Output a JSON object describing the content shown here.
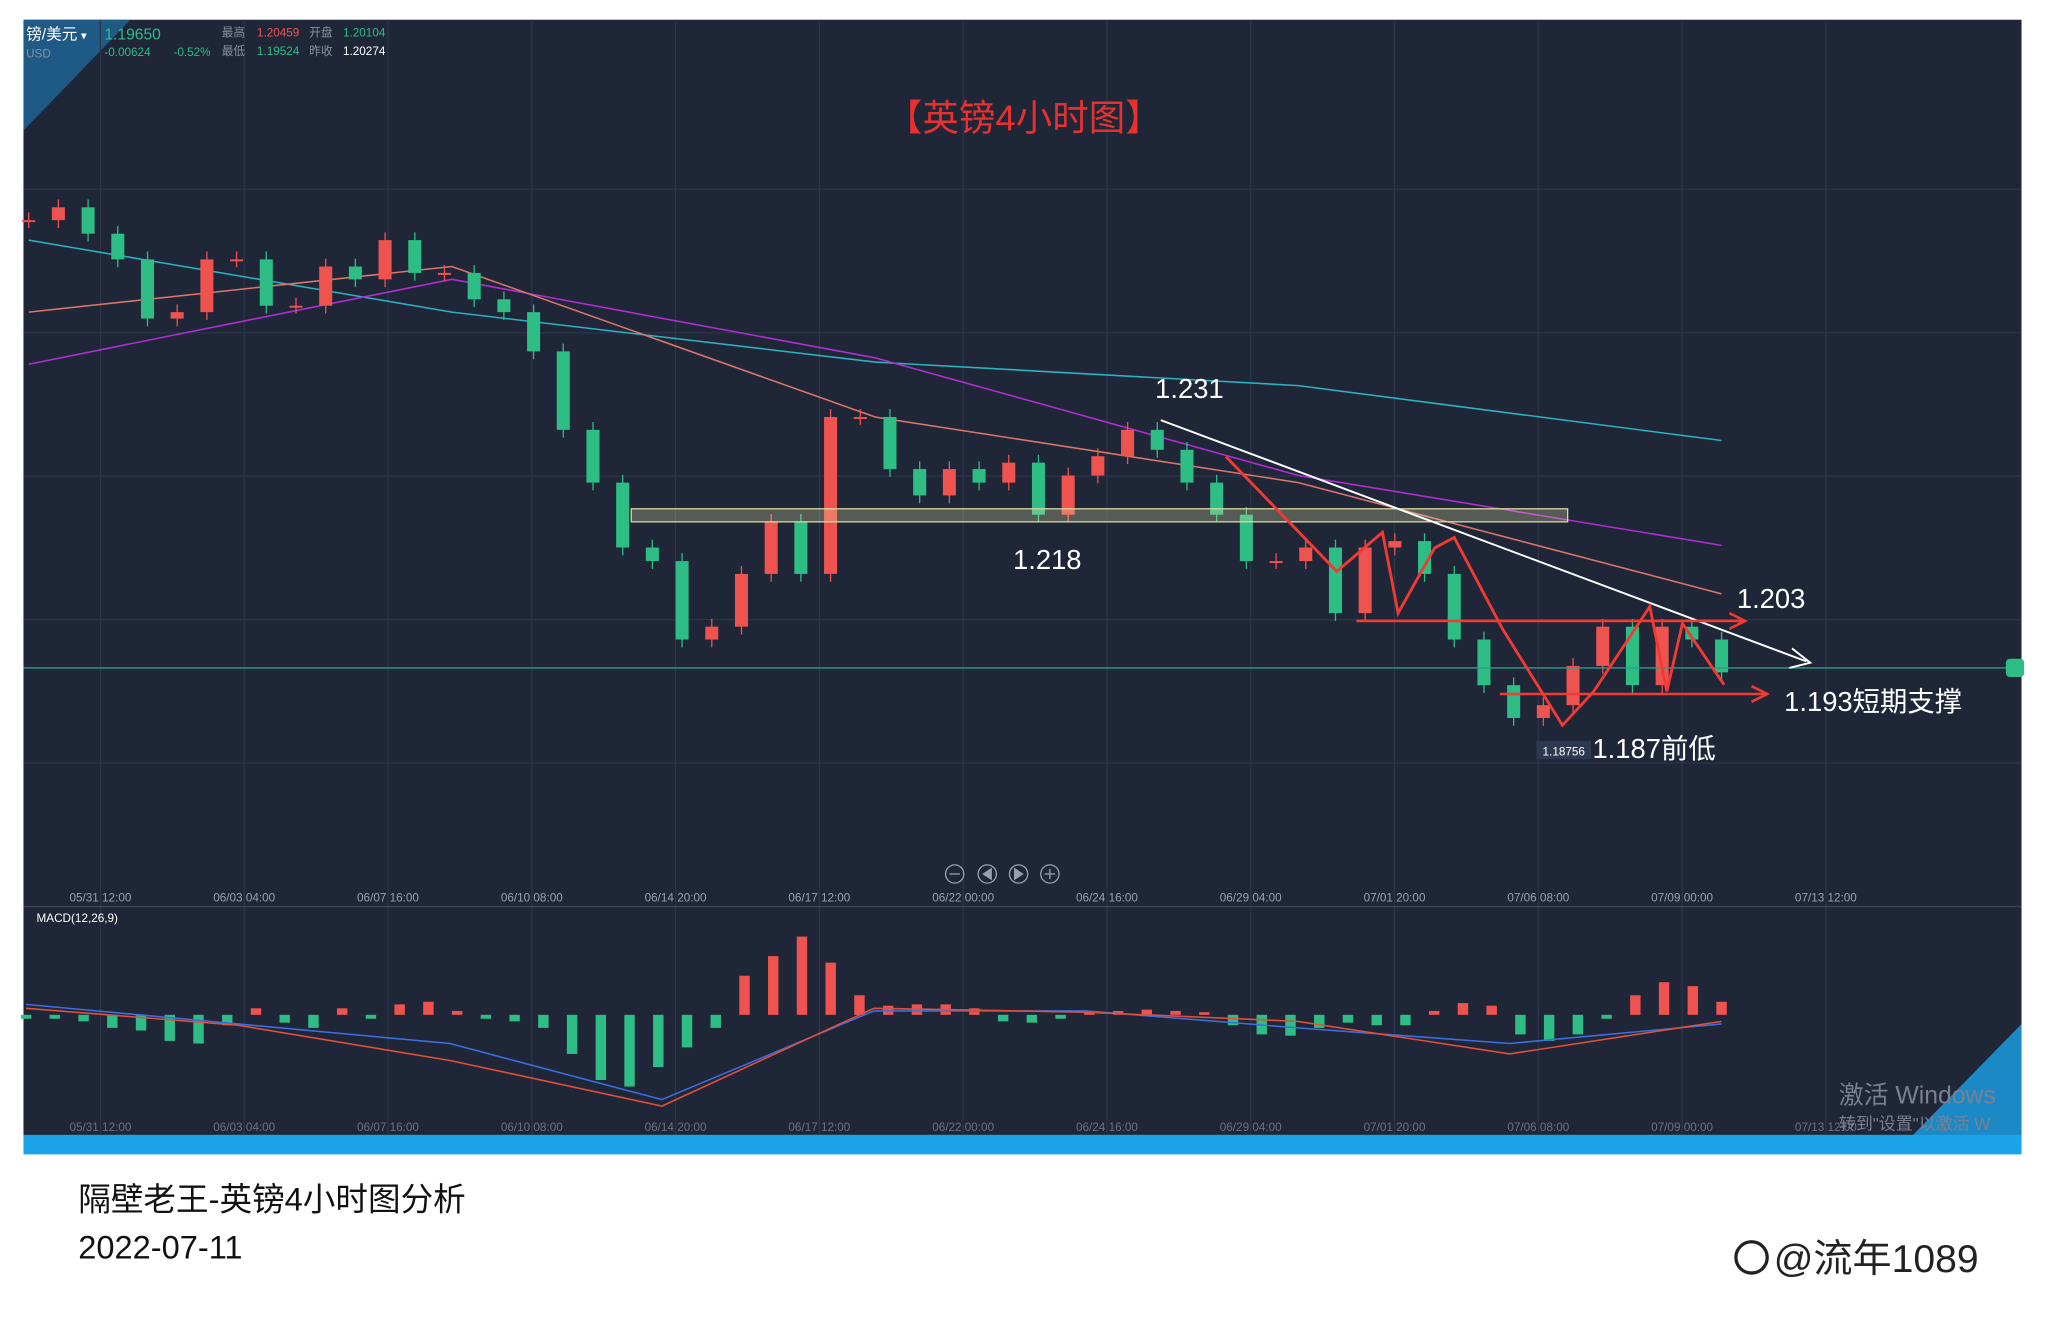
{
  "header": {
    "symbol": "镑/美元",
    "currency": "USD",
    "price": "1.19650",
    "change": "-0.00624",
    "change_pct": "-0.52%",
    "stats": [
      {
        "label": "最高",
        "value": "1.20459"
      },
      {
        "label": "开盘",
        "value": "1.20104"
      },
      {
        "label": "最低",
        "value": "1.19524"
      },
      {
        "label": "昨收",
        "value": "1.20274"
      }
    ]
  },
  "chart_title": "【英镑4小时图】",
  "time_labels": [
    "05/31 12:00",
    "06/03 04:00",
    "06/07 16:00",
    "06/10 08:00",
    "06/14 20:00",
    "06/17 12:00",
    "06/22 00:00",
    "06/24 16:00",
    "06/29 04:00",
    "07/01 20:00",
    "07/06 08:00",
    "07/09 00:00",
    "07/13 12:00"
  ],
  "price_chart": {
    "type": "candlestick",
    "ylim": [
      1.166,
      1.262
    ],
    "closes": [
      1.2595,
      1.2613,
      1.2576,
      1.254,
      1.2457,
      1.2466,
      1.254,
      1.254,
      1.2475,
      1.2475,
      1.253,
      1.2512,
      1.2567,
      1.2521,
      1.2521,
      1.2484,
      1.2466,
      1.2411,
      1.2301,
      1.2227,
      1.2136,
      1.2117,
      1.2007,
      1.2025,
      1.2099,
      1.2172,
      1.2099,
      1.2319,
      1.2319,
      1.2246,
      1.2209,
      1.2246,
      1.2227,
      1.2255,
      1.2182,
      1.2237,
      1.2264,
      1.2301,
      1.2273,
      1.2227,
      1.2182,
      1.2117,
      1.2117,
      1.2136,
      1.2044,
      1.2136,
      1.2145,
      1.2099,
      1.2007,
      1.1943,
      1.1897,
      1.1915,
      1.197,
      1.2025,
      1.1943,
      1.2025,
      1.2007,
      1.1961
    ],
    "ma": [
      {
        "color": "#2bb3c0",
        "values": [
          1.2567,
          1.2466,
          1.2396,
          1.2363,
          1.2286
        ]
      },
      {
        "color": "#b02fd0",
        "values": [
          1.2393,
          1.2512,
          1.2402,
          1.2237,
          1.2139
        ]
      },
      {
        "color": "#d9766b",
        "values": [
          1.2466,
          1.253,
          1.2319,
          1.2227,
          1.2071
        ]
      }
    ]
  },
  "annotations": {
    "high": "1.231",
    "zone": "1.218",
    "resistance": "1.203",
    "support": "1.193短期支撑",
    "prev_low": "1.187前低",
    "low_tag": "1.18756"
  },
  "macd": {
    "type": "bar",
    "label": "MACD(12,26,9)",
    "ylim": [
      -7.7,
      7.3
    ],
    "histogram": [
      -0.3,
      -0.3,
      -0.5,
      -1.0,
      -1.2,
      -2.0,
      -2.2,
      -0.8,
      0.5,
      -0.6,
      -1.0,
      0.5,
      -0.3,
      0.8,
      1.0,
      0.3,
      -0.3,
      -0.5,
      -1.0,
      -3.0,
      -5.0,
      -5.5,
      -4.0,
      -2.5,
      -1.0,
      3.0,
      4.5,
      6.0,
      4.0,
      1.5,
      0.7,
      0.8,
      0.8,
      0.5,
      -0.5,
      -0.6,
      -0.3,
      0.2,
      0.3,
      0.4,
      0.3,
      0.2,
      -0.8,
      -1.5,
      -1.6,
      -1.0,
      -0.6,
      -0.8,
      -0.8,
      0.3,
      0.9,
      0.7,
      -1.5,
      -2.0,
      -1.5,
      -0.3,
      1.5,
      2.5,
      2.2,
      1.0
    ],
    "lines": [
      {
        "color": "#3b6fe0",
        "values": [
          0.8,
          -0.7,
          -2.2,
          -6.5,
          0.3,
          0.3,
          -1.0,
          -2.2,
          -0.7
        ]
      },
      {
        "color": "#e0503b",
        "values": [
          0.5,
          -0.8,
          -3.5,
          -7.0,
          0.5,
          0.2,
          -0.5,
          -3.0,
          -0.5
        ]
      }
    ]
  },
  "watermark": {
    "line1": "激活 Windows",
    "line2": "转到\"设置\"以激活 W"
  },
  "footer": {
    "title": "隔壁老王-英镑4小时图分析",
    "date": "2022-07-11",
    "author": "@流年1089"
  }
}
